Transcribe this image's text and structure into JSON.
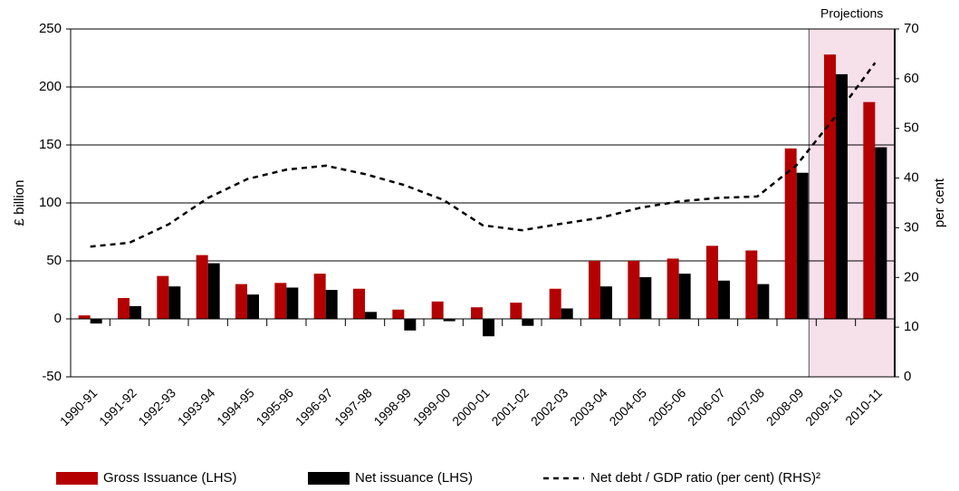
{
  "chart_data": {
    "type": "bar",
    "categories": [
      "1990-91",
      "1991-92",
      "1992-93",
      "1993-94",
      "1994-95",
      "1995-96",
      "1996-97",
      "1997-98",
      "1998-99",
      "1999-00",
      "2000-01",
      "2001-02",
      "2002-03",
      "2003-04",
      "2004-05",
      "2005-06",
      "2006-07",
      "2007-08",
      "2008-09",
      "2009-10",
      "2010-11"
    ],
    "series": [
      {
        "name": "Gross Issuance (LHS)",
        "color": "#b40000",
        "type": "bar",
        "values": [
          3,
          18,
          37,
          55,
          30,
          31,
          39,
          26,
          8,
          15,
          10,
          14,
          26,
          50,
          50,
          52,
          63,
          59,
          147,
          228,
          187
        ]
      },
      {
        "name": "Net issuance (LHS)",
        "color": "#000000",
        "type": "bar",
        "values": [
          -4,
          11,
          28,
          48,
          21,
          27,
          25,
          6,
          -10,
          -2,
          -15,
          -6,
          9,
          28,
          36,
          39,
          33,
          30,
          126,
          211,
          148
        ]
      },
      {
        "name": "Net debt / GDP ratio (per cent) (RHS)²",
        "color": "#000000",
        "type": "line",
        "axis": "y2",
        "values": [
          26.2,
          27,
          30.7,
          36,
          39.8,
          41.7,
          42.5,
          40.8,
          38.6,
          35.6,
          30.5,
          29.5,
          30.8,
          32,
          34,
          35.3,
          36,
          36.3,
          42.6,
          52.5,
          63.2
        ]
      }
    ],
    "ylabel": "£ billion",
    "y2label": "per cent",
    "ylim": [
      -50,
      250
    ],
    "yticks": [
      -50,
      0,
      50,
      100,
      150,
      200,
      250
    ],
    "y2lim": [
      0,
      70
    ],
    "y2ticks": [
      0,
      10,
      20,
      30,
      40,
      50,
      60,
      70
    ],
    "grid": true,
    "shaded_label": "Projections",
    "shaded_categories": [
      "2009-10",
      "2010-11"
    ],
    "legend": "bottom"
  }
}
